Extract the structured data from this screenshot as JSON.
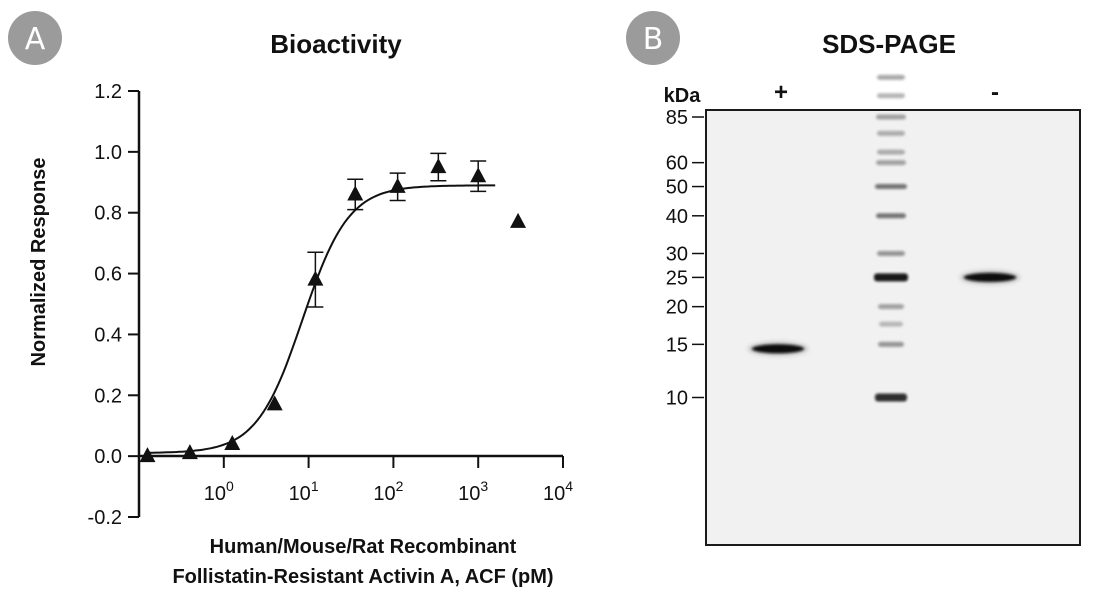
{
  "panels": {
    "a_label": "A",
    "b_label": "B"
  },
  "chart_data": {
    "type": "scatter",
    "title": "Bioactivity",
    "xlabel_line1": "Human/Mouse/Rat Recombinant",
    "xlabel_line2": "Follistatin-Resistant Activin A, ACF (pM)",
    "ylabel": "Normalized Response",
    "xscale": "log",
    "xlim_log10": [
      -1,
      4
    ],
    "ylim": [
      -0.2,
      1.2
    ],
    "yticks": [
      -0.2,
      0.0,
      0.2,
      0.4,
      0.6,
      0.8,
      1.0,
      1.2
    ],
    "ytick_labels": [
      "-0.2",
      "0.0",
      "0.2",
      "0.4",
      "0.6",
      "0.8",
      "1.0",
      "1.2"
    ],
    "xticks_log10": [
      0,
      1,
      2,
      3,
      4
    ],
    "xtick_bases": [
      "10",
      "10",
      "10",
      "10",
      "10"
    ],
    "xtick_exponents": [
      "0",
      "1",
      "2",
      "3",
      "4"
    ],
    "points": [
      {
        "x_log10": -0.9,
        "y": 0.0,
        "err": 0.0
      },
      {
        "x_log10": -0.4,
        "y": 0.01,
        "err": 0.0
      },
      {
        "x_log10": 0.1,
        "y": 0.04,
        "err": 0.0
      },
      {
        "x_log10": 0.6,
        "y": 0.17,
        "err": 0.0
      },
      {
        "x_log10": 1.08,
        "y": 0.58,
        "err": 0.09
      },
      {
        "x_log10": 1.55,
        "y": 0.86,
        "err": 0.05
      },
      {
        "x_log10": 2.05,
        "y": 0.885,
        "err": 0.045
      },
      {
        "x_log10": 2.53,
        "y": 0.95,
        "err": 0.045
      },
      {
        "x_log10": 3.0,
        "y": 0.92,
        "err": 0.05
      },
      {
        "x_log10": 3.47,
        "y": 0.77,
        "err": 0.0
      }
    ],
    "fit": {
      "bottom": 0.01,
      "top": 0.89,
      "logEC50": 0.93,
      "hill": 1.6,
      "x_start_log10": -0.9,
      "x_end_log10": 3.2
    }
  },
  "gel": {
    "title": "SDS-PAGE",
    "unit_label": "kDa",
    "lane_plus": "+",
    "lane_minus": "-",
    "markers": [
      "85",
      "60",
      "50",
      "40",
      "30",
      "25",
      "20",
      "15",
      "10"
    ],
    "bands": [
      {
        "lane": "+",
        "kda": 14.5
      },
      {
        "lane": "-",
        "kda": 25
      }
    ]
  }
}
